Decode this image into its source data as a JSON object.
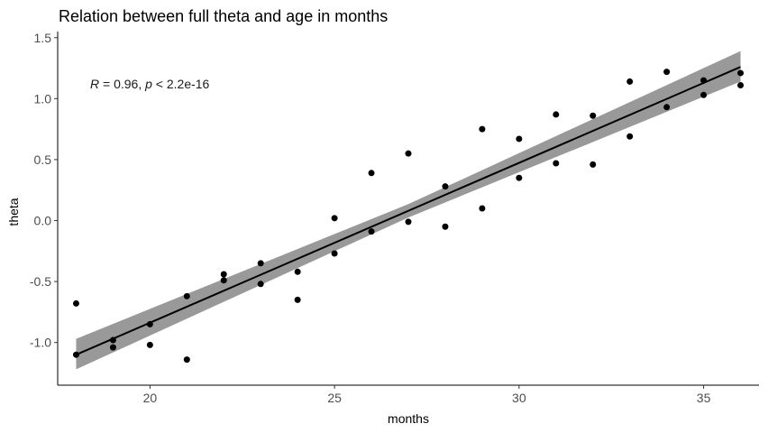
{
  "chart_data": {
    "type": "scatter",
    "title": "Relation between full theta and age in months",
    "xlabel": "months",
    "ylabel": "theta",
    "xlim": [
      17.5,
      36.5
    ],
    "ylim": [
      -1.35,
      1.55
    ],
    "x_ticks": [
      20,
      25,
      30,
      35
    ],
    "y_ticks": [
      -1.0,
      -0.5,
      0.0,
      0.5,
      1.0,
      1.5
    ],
    "x_tick_labels": [
      "20",
      "25",
      "30",
      "35"
    ],
    "y_tick_labels": [
      "-1.0",
      "-0.5",
      "0.0",
      "0.5",
      "1.0",
      "1.5"
    ],
    "grid": false,
    "annotation": {
      "r_symbol": "R",
      "r_rest": " = 0.96, ",
      "p_symbol": "p",
      "p_rest": " < 2.2e-16"
    },
    "points": [
      {
        "x": 18,
        "y": -0.68
      },
      {
        "x": 18,
        "y": -1.1
      },
      {
        "x": 19,
        "y": -0.98
      },
      {
        "x": 19,
        "y": -1.04
      },
      {
        "x": 20,
        "y": -0.85
      },
      {
        "x": 20,
        "y": -1.02
      },
      {
        "x": 21,
        "y": -0.62
      },
      {
        "x": 21,
        "y": -1.14
      },
      {
        "x": 22,
        "y": -0.44
      },
      {
        "x": 22,
        "y": -0.49
      },
      {
        "x": 23,
        "y": -0.35
      },
      {
        "x": 23,
        "y": -0.52
      },
      {
        "x": 24,
        "y": -0.42
      },
      {
        "x": 24,
        "y": -0.65
      },
      {
        "x": 25,
        "y": 0.02
      },
      {
        "x": 25,
        "y": -0.27
      },
      {
        "x": 26,
        "y": 0.39
      },
      {
        "x": 26,
        "y": -0.09
      },
      {
        "x": 27,
        "y": 0.55
      },
      {
        "x": 27,
        "y": -0.01
      },
      {
        "x": 28,
        "y": 0.28
      },
      {
        "x": 28,
        "y": -0.05
      },
      {
        "x": 29,
        "y": 0.75
      },
      {
        "x": 29,
        "y": 0.1
      },
      {
        "x": 30,
        "y": 0.67
      },
      {
        "x": 30,
        "y": 0.35
      },
      {
        "x": 31,
        "y": 0.87
      },
      {
        "x": 31,
        "y": 0.47
      },
      {
        "x": 32,
        "y": 0.86
      },
      {
        "x": 32,
        "y": 0.46
      },
      {
        "x": 33,
        "y": 1.14
      },
      {
        "x": 33,
        "y": 0.69
      },
      {
        "x": 34,
        "y": 1.22
      },
      {
        "x": 34,
        "y": 0.93
      },
      {
        "x": 35,
        "y": 1.15
      },
      {
        "x": 35,
        "y": 1.03
      },
      {
        "x": 36,
        "y": 1.21
      },
      {
        "x": 36,
        "y": 1.11
      }
    ],
    "fit_line": {
      "x": [
        18,
        36
      ],
      "y": [
        -1.1,
        1.26
      ]
    },
    "confidence_band": {
      "x": [
        18,
        27,
        36
      ],
      "upper": [
        -0.97,
        0.135,
        1.39
      ],
      "lower": [
        -1.22,
        0.025,
        1.14
      ]
    },
    "colors": {
      "points": "#000000",
      "line": "#000000",
      "band": "#999999",
      "axis": "#000000",
      "tick_text": "#4d4d4d"
    }
  }
}
